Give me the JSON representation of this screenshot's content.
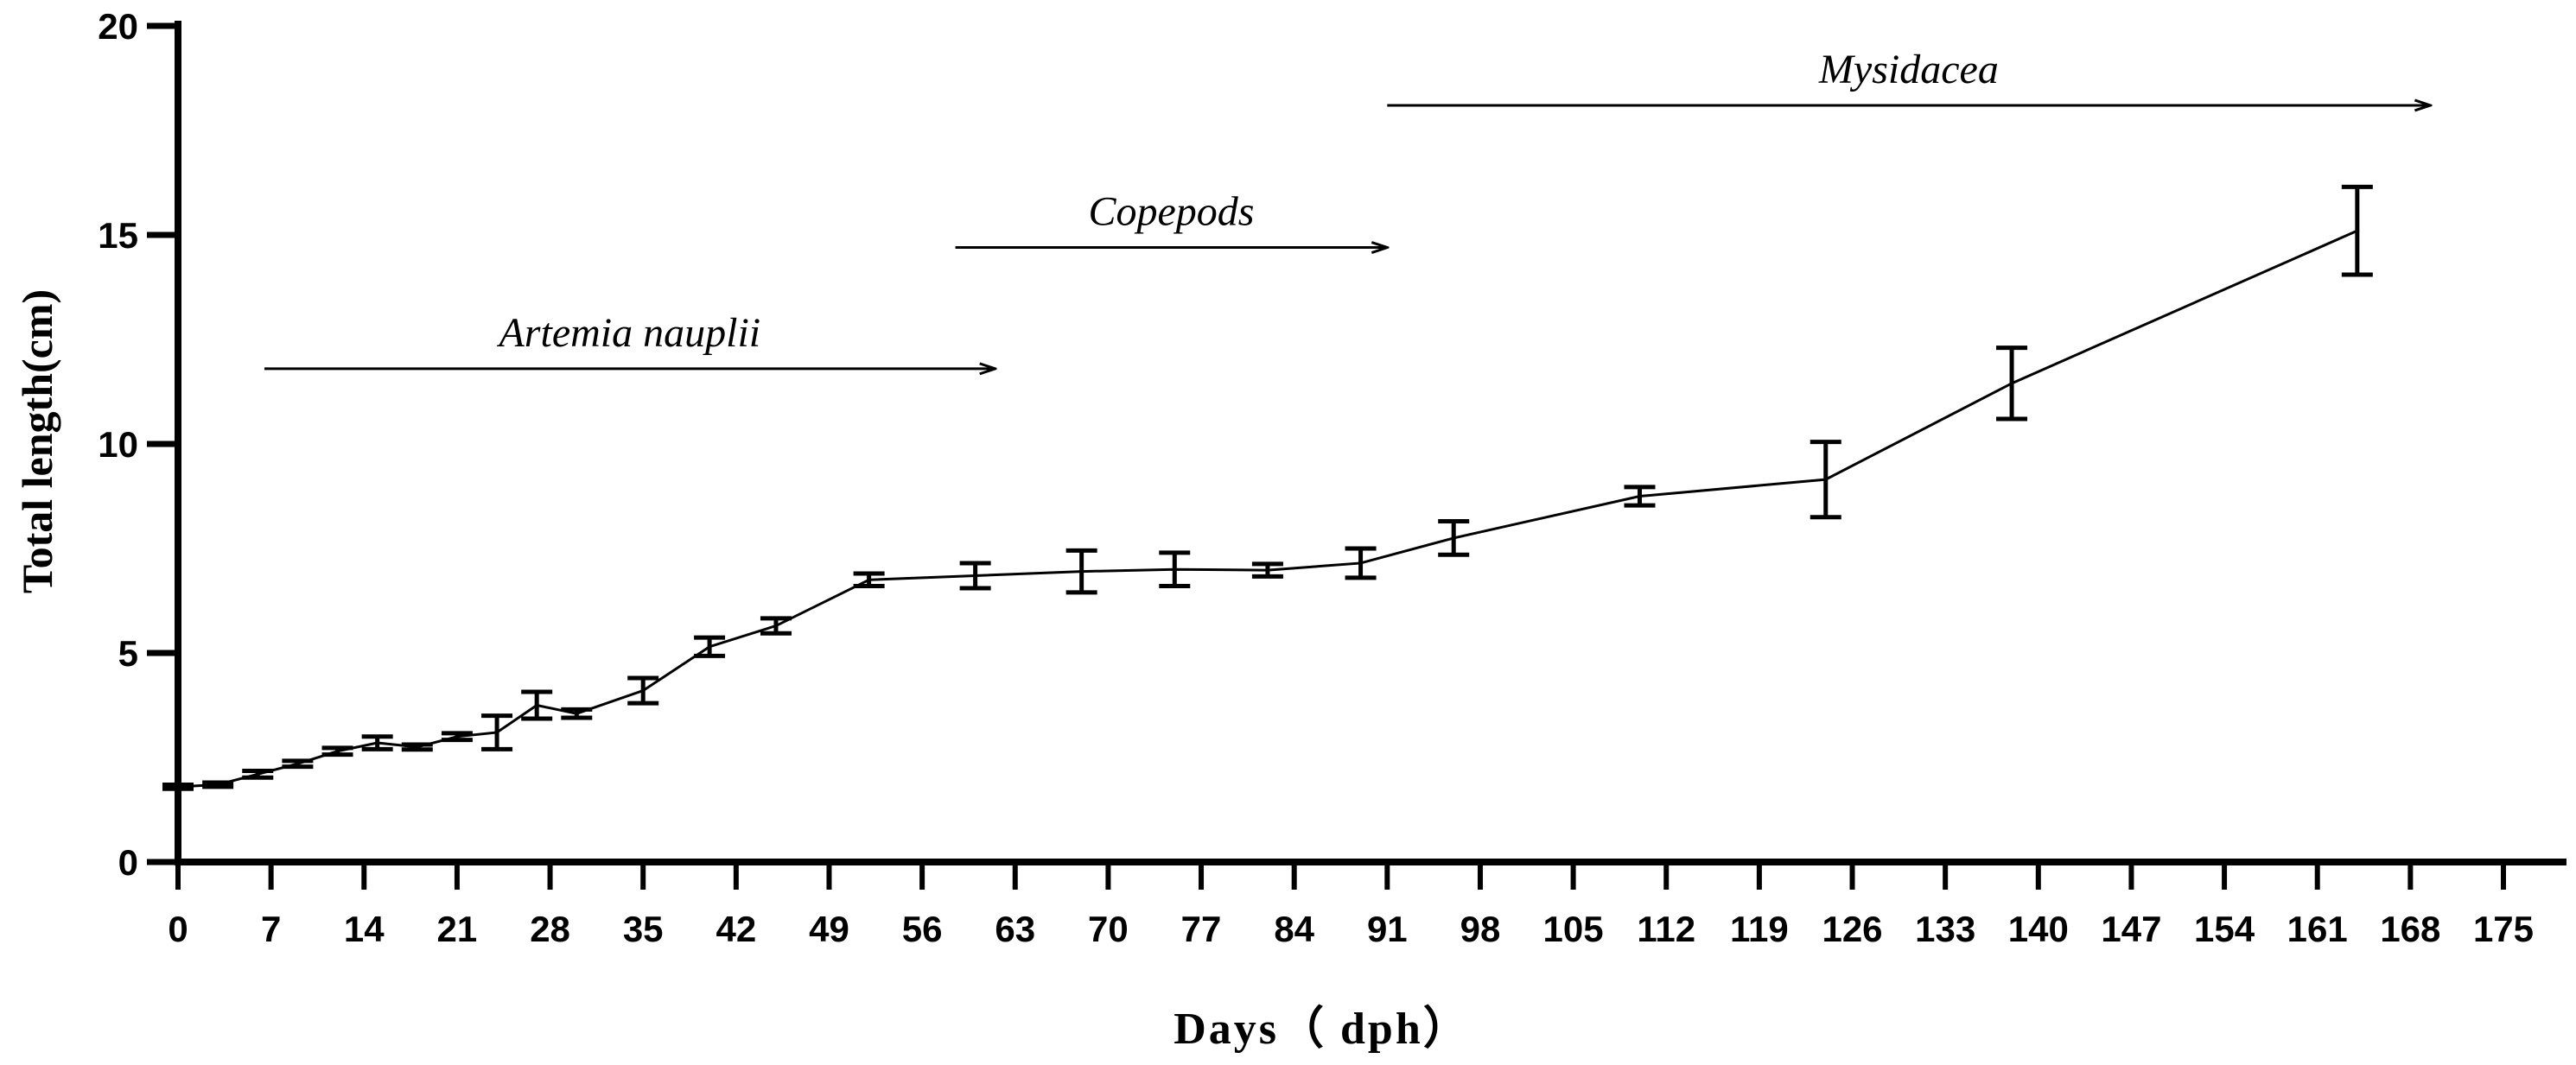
{
  "chart_data": {
    "type": "line",
    "title": "",
    "xlabel": "Days（ dph）",
    "ylabel": "Total  length(cm)",
    "xlim": [
      0,
      175
    ],
    "ylim": [
      0,
      20
    ],
    "x_ticks": [
      0,
      7,
      14,
      21,
      28,
      35,
      42,
      49,
      56,
      63,
      70,
      77,
      84,
      91,
      98,
      105,
      112,
      119,
      126,
      133,
      140,
      147,
      154,
      161,
      168,
      175
    ],
    "y_ticks": [
      0,
      5,
      10,
      15,
      20
    ],
    "grid": false,
    "series": [
      {
        "name": "Total length",
        "x": [
          0,
          3,
          6,
          9,
          12,
          15,
          18,
          21,
          24,
          27,
          30,
          35,
          40,
          45,
          52,
          60,
          68,
          75,
          82,
          89,
          96,
          110,
          124,
          138,
          164
        ],
        "y": [
          1.8,
          1.85,
          2.1,
          2.35,
          2.65,
          2.85,
          2.75,
          3.0,
          3.1,
          3.75,
          3.55,
          4.1,
          5.15,
          5.65,
          6.75,
          6.85,
          6.95,
          7.0,
          6.98,
          7.15,
          7.75,
          8.75,
          9.15,
          11.45,
          15.1
        ],
        "error": [
          0.05,
          0.05,
          0.08,
          0.07,
          0.08,
          0.15,
          0.06,
          0.08,
          0.4,
          0.32,
          0.1,
          0.3,
          0.22,
          0.18,
          0.15,
          0.3,
          0.5,
          0.4,
          0.15,
          0.35,
          0.4,
          0.22,
          0.9,
          0.85,
          1.05
        ]
      }
    ],
    "annotations": [
      {
        "text": "Artemia nauplii",
        "x_start": 6.5,
        "x_end": 61.5,
        "y": 11.8
      },
      {
        "text": "Copepods",
        "x_start": 58.5,
        "x_end": 91,
        "y": 14.7
      },
      {
        "text": "Mysidacea",
        "x_start": 91,
        "x_end": 169.5,
        "y": 18.1
      }
    ]
  }
}
